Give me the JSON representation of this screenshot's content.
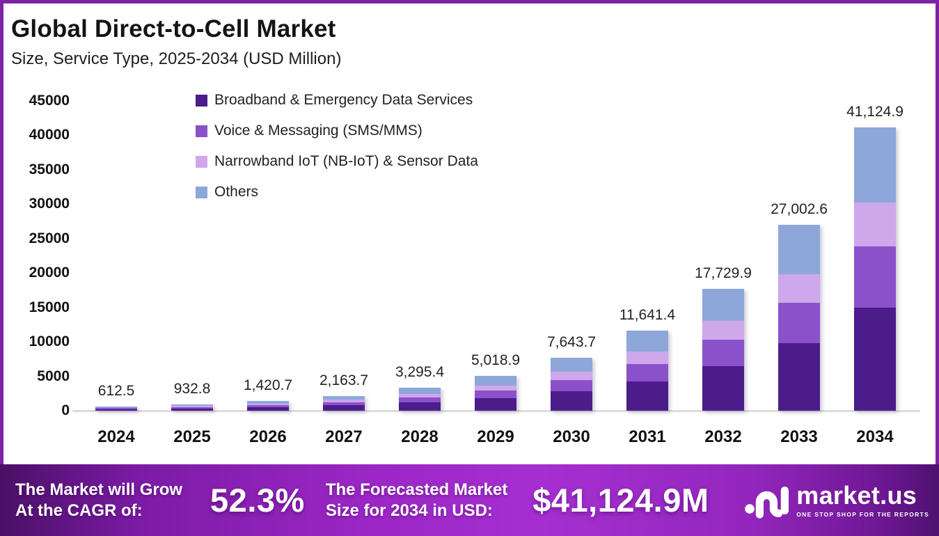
{
  "header": {
    "title": "Global Direct-to-Cell Market",
    "subtitle": "Size, Service Type, 2025-2034 (USD Million)"
  },
  "chart_data": {
    "type": "bar",
    "stacked": true,
    "title": "Global Direct-to-Cell Market Size, Service Type, 2025-2034 (USD Million)",
    "xlabel": "",
    "ylabel": "",
    "categories": [
      "2024",
      "2025",
      "2026",
      "2027",
      "2028",
      "2029",
      "2030",
      "2031",
      "2032",
      "2033",
      "2034"
    ],
    "totals": [
      612.5,
      932.8,
      1420.7,
      2163.7,
      3295.4,
      5018.9,
      7643.7,
      11641.4,
      17729.9,
      27002.6,
      41124.9
    ],
    "total_labels": [
      "612.5",
      "932.8",
      "1,420.7",
      "2,163.7",
      "3,295.4",
      "5,018.9",
      "7,643.7",
      "11,641.4",
      "17,729.9",
      "27,002.6",
      "41,124.9"
    ],
    "series": [
      {
        "name": "Broadband & Emergency Data Services",
        "color": "#4b1c8a",
        "values": [
          223.6,
          340.5,
          518.6,
          789.8,
          1202.8,
          1831.9,
          2790.0,
          4249.1,
          6471.4,
          9855.9,
          15010.6
        ]
      },
      {
        "name": "Voice & Messaging (SMS/MMS)",
        "color": "#8a51cb",
        "values": [
          131.7,
          200.6,
          305.5,
          465.2,
          708.5,
          1079.1,
          1643.4,
          2502.9,
          3811.9,
          5805.6,
          8841.9
        ]
      },
      {
        "name": "Narrowband IoT (NB-IoT) & Sensor Data",
        "color": "#cfa7eb",
        "values": [
          94.9,
          144.6,
          220.2,
          335.4,
          510.8,
          777.9,
          1184.8,
          1804.4,
          2748.1,
          4185.4,
          6374.4
        ]
      },
      {
        "name": "Others",
        "color": "#8ea7db",
        "values": [
          162.3,
          247.1,
          376.4,
          573.3,
          873.3,
          1330.0,
          2025.5,
          3085.0,
          4698.5,
          7155.7,
          10898.0
        ]
      }
    ],
    "series_note": "segment values estimated from bar pixel heights; totals are labeled on chart",
    "ylim": [
      0,
      45000
    ],
    "yticks": [
      0,
      5000,
      10000,
      15000,
      20000,
      25000,
      30000,
      35000,
      40000,
      45000
    ],
    "grid": false,
    "legend_position": "top-left-inside"
  },
  "footer": {
    "cagr_label_line1": "The Market will Grow",
    "cagr_label_line2": "At the CAGR of:",
    "cagr_value": "52.3%",
    "forecast_label_line1": "The Forecasted Market",
    "forecast_label_line2": "Size for 2034 in USD:",
    "forecast_value": "$41,124.9M"
  },
  "brand": {
    "name": "market.us",
    "tagline": "ONE STOP SHOP FOR THE REPORTS",
    "logo_icon": "market-us-monogram"
  },
  "colors": {
    "page_border": "#7e22a8",
    "axis_line": "#dcdcdc",
    "footer_purple": "#9c27c6",
    "text": "#141414"
  }
}
